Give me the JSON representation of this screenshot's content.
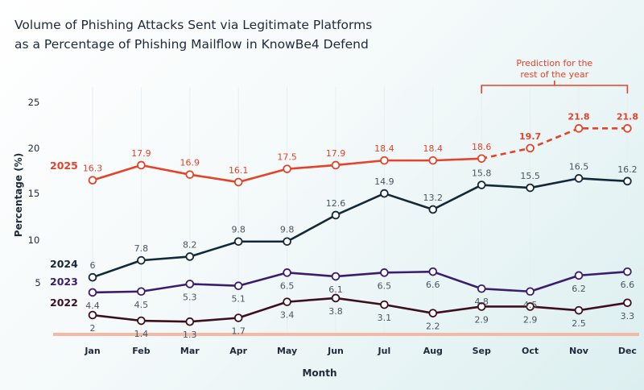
{
  "chart_data": {
    "type": "line",
    "title": [
      "Volume of Phishing Attacks Sent via Legitimate Platforms",
      "as a Percentage of Phishing Mailflow in KnowBe4 Defend"
    ],
    "xlabel": "Month",
    "ylabel": "Percentage (%)",
    "yticks": [
      "5",
      "10",
      "15",
      "20",
      "25"
    ],
    "ylim": [
      0,
      25
    ],
    "categories": [
      "Jan",
      "Feb",
      "Mar",
      "Apr",
      "May",
      "Jun",
      "Jul",
      "Aug",
      "Sep",
      "Oct",
      "Nov",
      "Dec"
    ],
    "series": [
      {
        "name": "2025",
        "color": "#e4432a",
        "values": [
          16.3,
          17.9,
          16.9,
          16.1,
          17.5,
          17.9,
          18.4,
          18.4,
          18.6,
          19.7,
          21.8,
          21.8
        ],
        "predicted_from_index": 8
      },
      {
        "name": "2024",
        "color": "#142838",
        "values": [
          6,
          7.8,
          8.2,
          9.8,
          9.8,
          12.6,
          14.9,
          13.2,
          15.8,
          15.5,
          16.5,
          16.2
        ]
      },
      {
        "name": "2023",
        "color": "#3b1d6e",
        "values": [
          4.4,
          4.5,
          5.3,
          5.1,
          6.5,
          6.1,
          6.5,
          6.6,
          4.8,
          4.5,
          6.2,
          6.6
        ]
      },
      {
        "name": "2022",
        "color": "#3d0f1c",
        "values": [
          2,
          1.4,
          1.3,
          1.7,
          3.4,
          3.8,
          3.1,
          2.2,
          2.9,
          2.9,
          2.5,
          3.3
        ]
      }
    ],
    "annotation": {
      "text": [
        "Prediction for the",
        "rest of the year"
      ],
      "span": [
        "Sep",
        "Dec"
      ],
      "color": "#e4432a"
    }
  }
}
